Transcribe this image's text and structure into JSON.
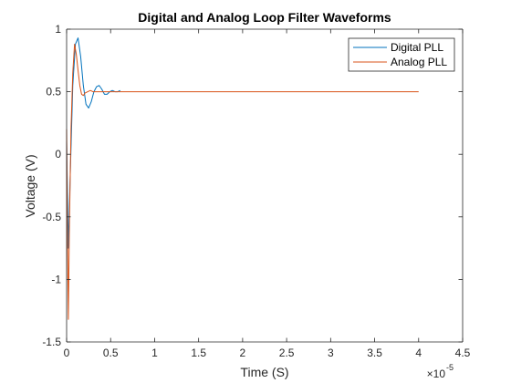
{
  "chart_data": {
    "type": "line",
    "title": "Digital and Analog Loop Filter Waveforms",
    "xlabel": "Time (S)",
    "ylabel": "Voltage (V)",
    "x_exponent_base": "×10",
    "x_exponent_power": "-5",
    "xlim": [
      0,
      4.5
    ],
    "ylim": [
      -1.5,
      1
    ],
    "x_unit_scale": 1e-05,
    "xticks": [
      0,
      0.5,
      1,
      1.5,
      2,
      2.5,
      3,
      3.5,
      4,
      4.5
    ],
    "xtick_labels": [
      "0",
      "0.5",
      "1",
      "1.5",
      "2",
      "2.5",
      "3",
      "3.5",
      "4",
      "4.5"
    ],
    "yticks": [
      -1.5,
      -1,
      -0.5,
      0,
      0.5,
      1
    ],
    "ytick_labels": [
      "-1.5",
      "-1",
      "-0.5",
      "0",
      "0.5",
      "1"
    ],
    "grid": false,
    "legend_position": "top-right",
    "series": [
      {
        "name": "Digital PLL",
        "color": "#0072BD",
        "x": [
          0,
          0.02,
          0.04,
          0.07,
          0.1,
          0.13,
          0.16,
          0.19,
          0.22,
          0.25,
          0.28,
          0.31,
          0.34,
          0.37,
          0.4,
          0.43,
          0.46,
          0.49,
          0.52,
          0.55,
          0.58,
          0.61
        ],
        "y": [
          0.1,
          -0.75,
          -0.2,
          0.55,
          0.88,
          0.93,
          0.78,
          0.55,
          0.4,
          0.37,
          0.42,
          0.5,
          0.54,
          0.55,
          0.52,
          0.48,
          0.48,
          0.5,
          0.51,
          0.5,
          0.5,
          0.51
        ]
      },
      {
        "name": "Analog PLL",
        "color": "#D95319",
        "x": [
          0,
          0.01,
          0.02,
          0.03,
          0.05,
          0.07,
          0.09,
          0.11,
          0.13,
          0.15,
          0.17,
          0.19,
          0.21,
          0.24,
          0.27,
          0.3,
          0.35,
          0.4,
          0.5,
          0.6,
          1.0,
          2.0,
          3.0,
          4.0
        ],
        "y": [
          0.2,
          -0.7,
          -1.32,
          -0.65,
          0.2,
          0.65,
          0.88,
          0.8,
          0.67,
          0.55,
          0.48,
          0.47,
          0.49,
          0.5,
          0.51,
          0.5,
          0.5,
          0.5,
          0.5,
          0.5,
          0.5,
          0.5,
          0.5,
          0.5
        ]
      }
    ]
  }
}
